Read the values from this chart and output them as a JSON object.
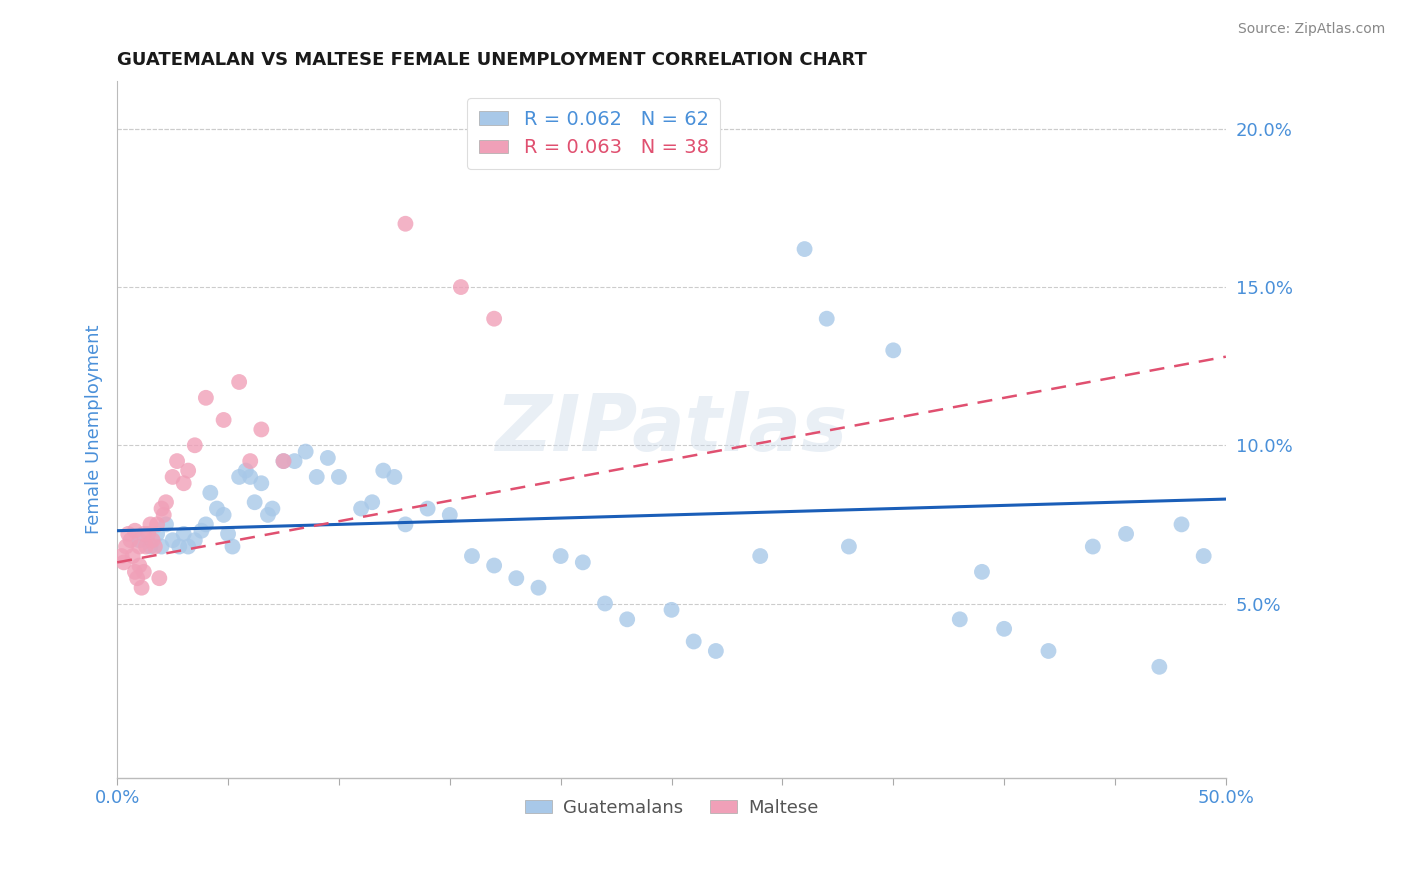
{
  "title": "GUATEMALAN VS MALTESE FEMALE UNEMPLOYMENT CORRELATION CHART",
  "source_text": "Source: ZipAtlas.com",
  "ylabel": "Female Unemployment",
  "xlim": [
    0.0,
    0.5
  ],
  "ylim": [
    -0.005,
    0.215
  ],
  "xticks": [
    0.0,
    0.05,
    0.1,
    0.15,
    0.2,
    0.25,
    0.3,
    0.35,
    0.4,
    0.45,
    0.5
  ],
  "yticks": [
    0.05,
    0.1,
    0.15,
    0.2
  ],
  "ytick_labels": [
    "5.0%",
    "10.0%",
    "15.0%",
    "20.0%"
  ],
  "guatemalan_color": "#a8c8e8",
  "maltese_color": "#f0a0b8",
  "guatemalan_line_color": "#1a5eb8",
  "maltese_line_color": "#e05070",
  "legend_R1": "R = 0.062",
  "legend_N1": "N = 62",
  "legend_R2": "R = 0.063",
  "legend_N2": "N = 38",
  "watermark": "ZIPatlas",
  "background_color": "#ffffff",
  "grid_color": "#cccccc",
  "axis_color": "#4a90d9",
  "title_color": "#1a1a1a",
  "guatemalan_x": [
    0.01,
    0.015,
    0.018,
    0.02,
    0.022,
    0.025,
    0.028,
    0.03,
    0.032,
    0.035,
    0.038,
    0.04,
    0.042,
    0.045,
    0.048,
    0.05,
    0.052,
    0.055,
    0.058,
    0.06,
    0.062,
    0.065,
    0.068,
    0.07,
    0.075,
    0.08,
    0.085,
    0.09,
    0.095,
    0.1,
    0.11,
    0.115,
    0.12,
    0.125,
    0.13,
    0.14,
    0.15,
    0.16,
    0.17,
    0.18,
    0.19,
    0.2,
    0.21,
    0.22,
    0.23,
    0.25,
    0.26,
    0.27,
    0.29,
    0.31,
    0.32,
    0.33,
    0.35,
    0.38,
    0.39,
    0.4,
    0.42,
    0.44,
    0.455,
    0.47,
    0.48,
    0.49
  ],
  "guatemalan_y": [
    0.07,
    0.068,
    0.072,
    0.068,
    0.075,
    0.07,
    0.068,
    0.072,
    0.068,
    0.07,
    0.073,
    0.075,
    0.085,
    0.08,
    0.078,
    0.072,
    0.068,
    0.09,
    0.092,
    0.09,
    0.082,
    0.088,
    0.078,
    0.08,
    0.095,
    0.095,
    0.098,
    0.09,
    0.096,
    0.09,
    0.08,
    0.082,
    0.092,
    0.09,
    0.075,
    0.08,
    0.078,
    0.065,
    0.062,
    0.058,
    0.055,
    0.065,
    0.063,
    0.05,
    0.045,
    0.048,
    0.038,
    0.035,
    0.065,
    0.162,
    0.14,
    0.068,
    0.13,
    0.045,
    0.06,
    0.042,
    0.035,
    0.068,
    0.072,
    0.03,
    0.075,
    0.065
  ],
  "maltese_x": [
    0.002,
    0.003,
    0.004,
    0.005,
    0.006,
    0.007,
    0.008,
    0.008,
    0.009,
    0.01,
    0.01,
    0.011,
    0.012,
    0.012,
    0.013,
    0.014,
    0.015,
    0.016,
    0.017,
    0.018,
    0.019,
    0.02,
    0.021,
    0.022,
    0.025,
    0.027,
    0.03,
    0.032,
    0.035,
    0.04,
    0.048,
    0.055,
    0.06,
    0.065,
    0.075,
    0.13,
    0.155,
    0.17
  ],
  "maltese_y": [
    0.065,
    0.063,
    0.068,
    0.072,
    0.07,
    0.065,
    0.073,
    0.06,
    0.058,
    0.062,
    0.068,
    0.055,
    0.06,
    0.072,
    0.068,
    0.072,
    0.075,
    0.07,
    0.068,
    0.075,
    0.058,
    0.08,
    0.078,
    0.082,
    0.09,
    0.095,
    0.088,
    0.092,
    0.1,
    0.115,
    0.108,
    0.12,
    0.095,
    0.105,
    0.095,
    0.17,
    0.15,
    0.14
  ]
}
